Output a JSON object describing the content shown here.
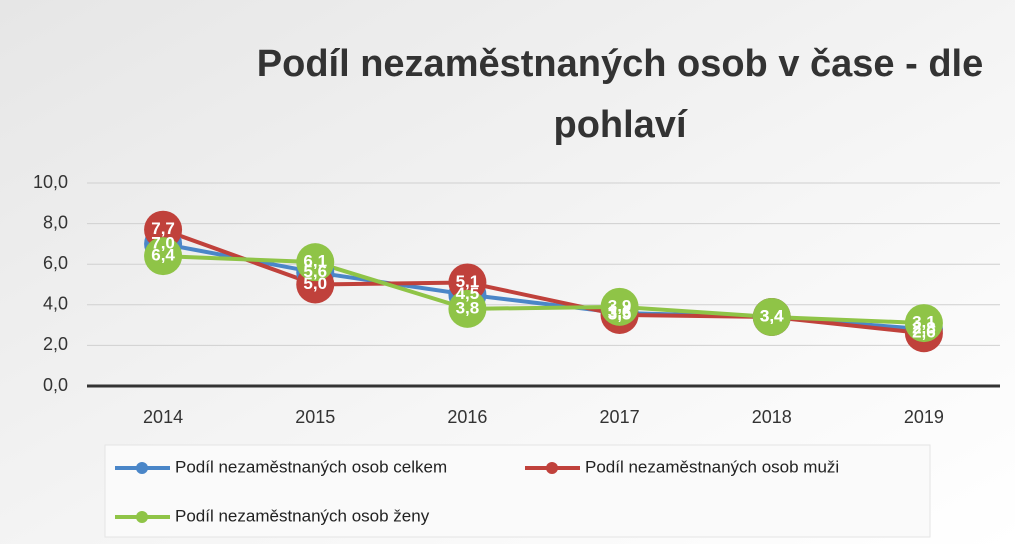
{
  "chart_data": {
    "type": "line",
    "title": "Podíl nezaměstnaných osob v čase - dle pohlaví",
    "categories": [
      "2014",
      "2015",
      "2016",
      "2017",
      "2018",
      "2019"
    ],
    "series": [
      {
        "name": "Podíl nezaměstnaných osob celkem",
        "color": "#4a86c8",
        "values": [
          7.0,
          5.6,
          4.5,
          3.6,
          3.4,
          2.8
        ],
        "value_labels": [
          "7,0",
          "5,6",
          "4,5",
          "3,6",
          "3,4",
          "2,8"
        ]
      },
      {
        "name": "Podíl nezaměstnaných osob muži",
        "color": "#c0413b",
        "values": [
          7.7,
          5.0,
          5.1,
          3.5,
          3.4,
          2.6
        ],
        "value_labels": [
          "7,7",
          "5,0",
          "5,1",
          "3,5",
          "3,4",
          "2,6"
        ]
      },
      {
        "name": "Podíl nezaměstnaných osob ženy",
        "color": "#8fc447",
        "values": [
          6.4,
          6.1,
          3.8,
          3.9,
          3.4,
          3.1
        ],
        "value_labels": [
          "6,4",
          "6,1",
          "3,8",
          "3,9",
          "3,4",
          "3,1"
        ]
      }
    ],
    "ylim": [
      0,
      10
    ],
    "yticks": [
      {
        "value": 0,
        "label": "0,0"
      },
      {
        "value": 2,
        "label": "2,0"
      },
      {
        "value": 4,
        "label": "4,0"
      },
      {
        "value": 6,
        "label": "6,0"
      },
      {
        "value": 8,
        "label": "8,0"
      },
      {
        "value": 10,
        "label": "10,0"
      }
    ],
    "grid": true,
    "legend": "bottom"
  }
}
